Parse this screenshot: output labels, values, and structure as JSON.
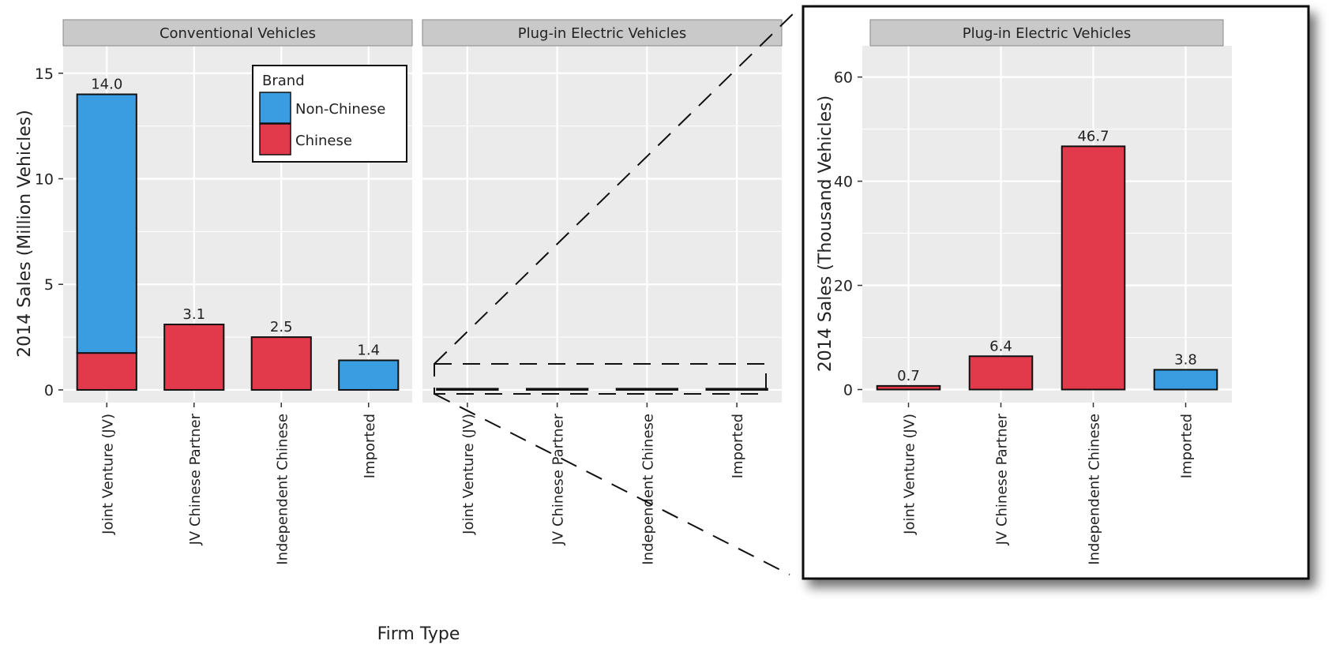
{
  "colors": {
    "chinese": "#e23a4b",
    "non_chinese": "#3a9de2",
    "panel_bg": "#ebebeb",
    "strip_bg": "#c9c9c9",
    "grid": "#ffffff"
  },
  "x_axis_title": "Firm Type",
  "chart_data": [
    {
      "type": "bar",
      "stacked": true,
      "panel_title": "Conventional Vehicles",
      "ylabel": "2014 Sales (Million Vehicles)",
      "ylim": [
        -0.6,
        16.3
      ],
      "yticks": [
        0,
        5,
        10,
        15
      ],
      "categories": [
        "Joint Venture (JV)",
        "JV Chinese Partner",
        "Independent Chinese",
        "Imported"
      ],
      "series": [
        {
          "name": "Chinese",
          "color": "#e23a4b",
          "values": [
            1.75,
            3.1,
            2.5,
            0
          ]
        },
        {
          "name": "Non-Chinese",
          "color": "#3a9de2",
          "values": [
            12.25,
            0,
            0,
            1.4
          ]
        }
      ],
      "labels": [
        "14.0",
        "3.1",
        "2.5",
        "1.4"
      ],
      "legend": {
        "title": "Brand",
        "position": "top-right",
        "entries": [
          "Non-Chinese",
          "Chinese"
        ]
      },
      "grid": true
    },
    {
      "type": "bar",
      "stacked": true,
      "panel_title": "Plug-in Electric Vehicles",
      "ylabel": "",
      "ylim": [
        -0.6,
        16.3
      ],
      "categories": [
        "Joint Venture (JV)",
        "JV Chinese Partner",
        "Independent Chinese",
        "Imported"
      ],
      "series": [
        {
          "name": "Chinese",
          "color": "#e23a4b",
          "values": [
            0.0007,
            0.0064,
            0.0467,
            0
          ]
        },
        {
          "name": "Non-Chinese",
          "color": "#3a9de2",
          "values": [
            0,
            0,
            0,
            0.0038
          ]
        }
      ],
      "grid": true
    },
    {
      "type": "bar",
      "panel_title": "Plug-in Electric Vehicles",
      "ylabel": "2014 Sales (Thousand Vehicles)",
      "ylim": [
        -2.5,
        66
      ],
      "yticks": [
        0,
        20,
        40,
        60
      ],
      "categories": [
        "Joint Venture (JV)",
        "JV Chinese Partner",
        "Independent Chinese",
        "Imported"
      ],
      "series": [
        {
          "name": "Chinese",
          "color": "#e23a4b",
          "values": [
            0.7,
            6.4,
            46.7,
            0
          ]
        },
        {
          "name": "Non-Chinese",
          "color": "#3a9de2",
          "values": [
            0,
            0,
            0,
            3.8
          ]
        }
      ],
      "labels": [
        "0.7",
        "6.4",
        "46.7",
        "3.8"
      ],
      "grid": true
    }
  ]
}
